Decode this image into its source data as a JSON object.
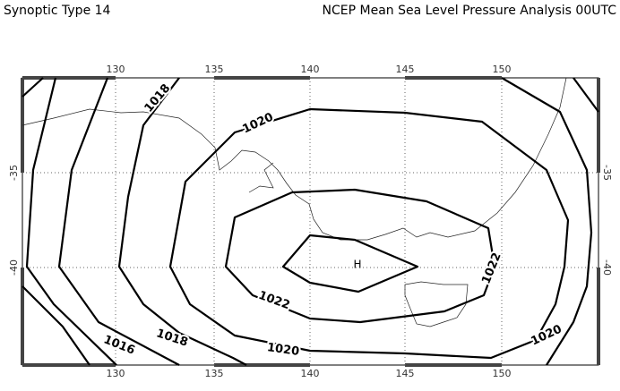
{
  "header": {
    "left": "Synoptic Type 14",
    "right": "NCEP Mean Sea Level Pressure Analysis 00UTC"
  },
  "map": {
    "lon_labels": [
      "130",
      "135",
      "140",
      "145",
      "150"
    ],
    "lat_labels": [
      "-35",
      "-40"
    ],
    "contour_labels": [
      "1018",
      "1020",
      "1022",
      "1022",
      "1016",
      "1018",
      "1020",
      "1020"
    ],
    "high": "H"
  }
}
